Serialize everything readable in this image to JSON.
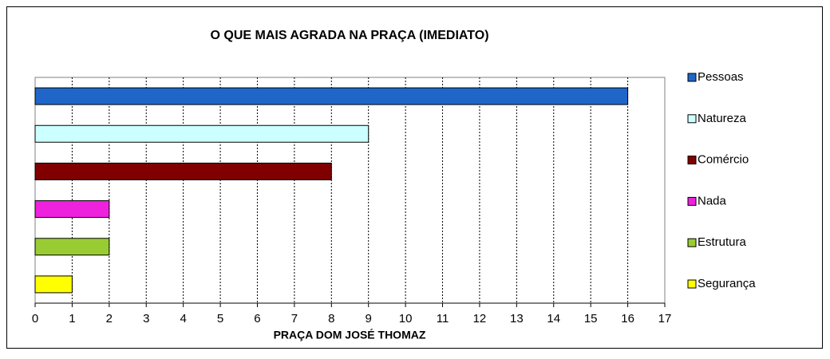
{
  "chart_data": {
    "type": "hbar",
    "title": "O QUE MAIS AGRADA NA PRAÇA (IMEDIATO)",
    "xlabel": "PRAÇA DOM JOSÉ THOMAZ",
    "series": [
      {
        "name": "Pessoas",
        "color": "#1f66c8",
        "values": [
          16
        ]
      },
      {
        "name": "Natureza",
        "color": "#ccffff",
        "values": [
          9
        ]
      },
      {
        "name": "Comércio",
        "color": "#800000",
        "values": [
          8
        ]
      },
      {
        "name": "Nada",
        "color": "#ee22dd",
        "values": [
          2
        ]
      },
      {
        "name": "Estrutura",
        "color": "#99cc33",
        "values": [
          2
        ]
      },
      {
        "name": "Segurança",
        "color": "#ffff00",
        "values": [
          1
        ]
      }
    ],
    "xlim": [
      0,
      17
    ],
    "xticks": [
      0,
      1,
      2,
      3,
      4,
      5,
      6,
      7,
      8,
      9,
      10,
      11,
      12,
      13,
      14,
      15,
      16,
      17
    ],
    "grid": true,
    "legend": "right"
  }
}
